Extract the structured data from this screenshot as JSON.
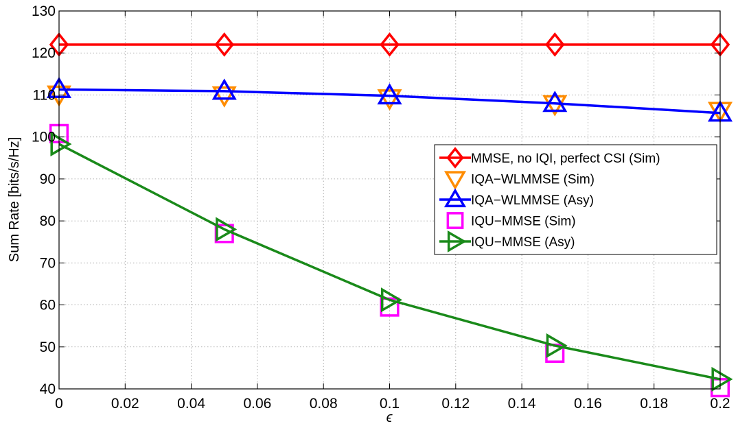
{
  "chart_data": {
    "type": "line",
    "title": "",
    "xlabel": "ϵ",
    "ylabel": "Sum Rate [bits/s/Hz]",
    "xlim": [
      0,
      0.2
    ],
    "ylim": [
      40,
      130
    ],
    "grid": true,
    "x_ticks": [
      0,
      0.02,
      0.04,
      0.06,
      0.08,
      0.1,
      0.12,
      0.14,
      0.16,
      0.18,
      0.2
    ],
    "x_tick_labels": [
      "0",
      "0.02",
      "0.04",
      "0.06",
      "0.08",
      "0.1",
      "0.12",
      "0.14",
      "0.16",
      "0.18",
      "0.2"
    ],
    "y_ticks": [
      40,
      50,
      60,
      70,
      80,
      90,
      100,
      110,
      120,
      130
    ],
    "y_tick_labels": [
      "40",
      "50",
      "60",
      "70",
      "80",
      "90",
      "100",
      "110",
      "120",
      "130"
    ],
    "legend_position": "right",
    "series": [
      {
        "name": "MMSE, no IQI, perfect CSI (Sim)",
        "color": "#ff0000",
        "marker": "diamond",
        "line": true,
        "x": [
          0,
          0.05,
          0.1,
          0.15,
          0.2
        ],
        "y": [
          122,
          122,
          122,
          122,
          122
        ]
      },
      {
        "name": "IQA−WLMMSE (Sim)",
        "color": "#ff8c00",
        "marker": "triangle-down",
        "line": false,
        "x": [
          0,
          0.05,
          0.1,
          0.15,
          0.2
        ],
        "y": [
          110.2,
          110,
          109.3,
          107.9,
          106.3
        ]
      },
      {
        "name": "IQA−WLMMSE (Asy)",
        "color": "#0000ff",
        "marker": "triangle-up",
        "line": true,
        "x": [
          0,
          0.05,
          0.1,
          0.15,
          0.2
        ],
        "y": [
          111.3,
          110.9,
          109.8,
          108,
          105.7
        ]
      },
      {
        "name": "IQU−MMSE (Sim)",
        "color": "#ff00ff",
        "marker": "square",
        "line": false,
        "x": [
          0,
          0.05,
          0.1,
          0.15,
          0.2
        ],
        "y": [
          100.8,
          77,
          59.5,
          48.5,
          40.3
        ]
      },
      {
        "name": "IQU−MMSE (Asy)",
        "color": "#1a8a1a",
        "marker": "triangle-right",
        "line": true,
        "x": [
          0,
          0.05,
          0.1,
          0.15,
          0.2
        ],
        "y": [
          98.3,
          78,
          61.2,
          50.3,
          42.3
        ]
      }
    ]
  }
}
